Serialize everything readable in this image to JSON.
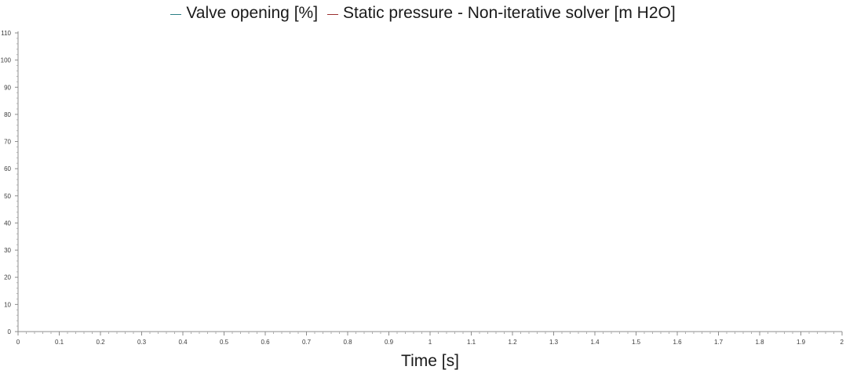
{
  "chart_data": {
    "type": "line",
    "title": "",
    "xlabel": "Time [s]",
    "ylabel": "",
    "xlim": [
      0,
      2
    ],
    "ylim": [
      0,
      110
    ],
    "x_ticks": [
      "0",
      "0.1",
      "0.2",
      "0.3",
      "0.4",
      "0.5",
      "0.6",
      "0.7",
      "0.8",
      "0.9",
      "1",
      "1.1",
      "1.2",
      "1.3",
      "1.4",
      "1.5",
      "1.6",
      "1.7",
      "1.8",
      "1.9",
      "2"
    ],
    "y_ticks": [
      "0",
      "10",
      "20",
      "30",
      "40",
      "50",
      "60",
      "70",
      "80",
      "90",
      "100",
      "110"
    ],
    "grid": false,
    "legend_position": "top-center",
    "series": [
      {
        "name": "Valve opening [%]",
        "color": "#2a7f86",
        "x": [],
        "y": []
      },
      {
        "name": "Static pressure - Non-iterative solver [m H2O]",
        "color": "#9b2f2f",
        "x": [],
        "y": []
      }
    ],
    "colors": {
      "axis": "#8c8c8c",
      "tick_label": "#3b3b3b",
      "text": "#1a1a1a"
    }
  }
}
